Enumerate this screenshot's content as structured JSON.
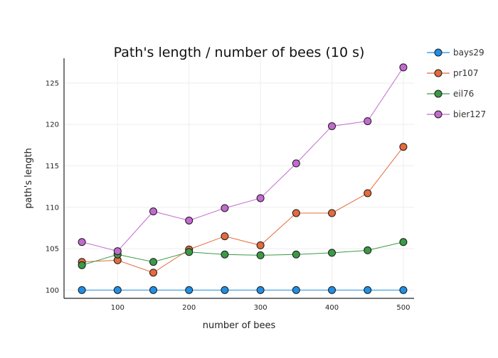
{
  "chart_data": {
    "type": "line",
    "title": "Path's length / number of bees (10 s)",
    "xlabel": "number of bees",
    "ylabel": "path's length",
    "xlim": [
      25,
      515
    ],
    "ylim": [
      99,
      128
    ],
    "xticks": [
      100,
      200,
      300,
      400,
      500
    ],
    "xtick_labels": [
      "100",
      "200",
      "300",
      "400",
      "500"
    ],
    "yticks": [
      100,
      105,
      110,
      115,
      120,
      125
    ],
    "ytick_labels": [
      "100",
      "105",
      "110",
      "115",
      "120",
      "125"
    ],
    "grid": true,
    "legend_position": "top-right",
    "x": [
      50,
      100,
      150,
      200,
      250,
      300,
      350,
      400,
      450,
      500
    ],
    "series": [
      {
        "name": "bays29",
        "color": "#1f8fe5",
        "values": [
          100,
          100,
          100,
          100,
          100,
          100,
          100,
          100,
          100,
          100
        ]
      },
      {
        "name": "pr107",
        "color": "#e56a3c",
        "values": [
          103.4,
          103.6,
          102.1,
          104.9,
          106.5,
          105.4,
          109.3,
          109.3,
          111.7,
          117.3
        ]
      },
      {
        "name": "eil76",
        "color": "#3a9a46",
        "values": [
          103.0,
          104.3,
          103.4,
          104.6,
          104.3,
          104.2,
          104.3,
          104.5,
          104.8,
          105.8
        ]
      },
      {
        "name": "bier127",
        "color": "#c36ad0",
        "values": [
          105.8,
          104.7,
          109.5,
          108.4,
          109.9,
          111.1,
          115.3,
          119.8,
          120.4,
          126.9
        ]
      }
    ]
  }
}
